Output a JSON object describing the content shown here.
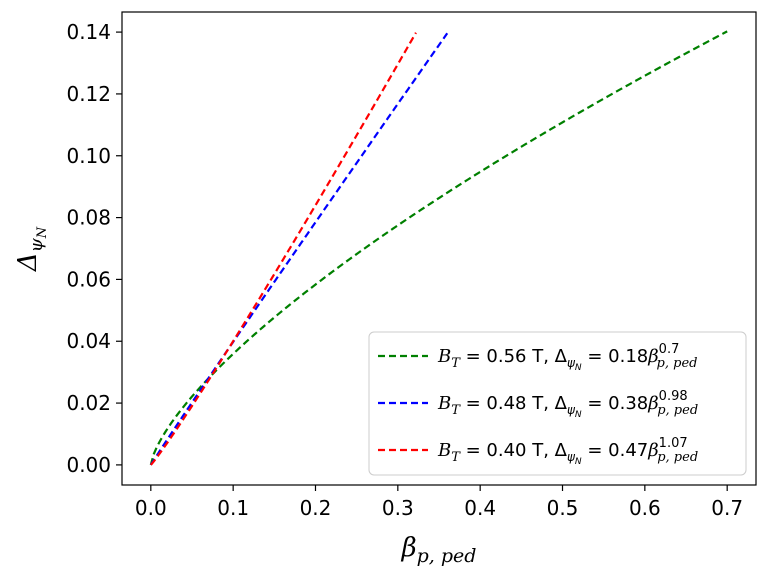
{
  "chart_data": {
    "type": "line",
    "title": "",
    "xlabel": "β_{p, ped}",
    "ylabel": "Δ_{ψ_N}",
    "xlim": [
      -0.035,
      0.735
    ],
    "ylim": [
      -0.0065,
      0.1465
    ],
    "xticks": [
      0.0,
      0.1,
      0.2,
      0.3,
      0.4,
      0.5,
      0.6,
      0.7
    ],
    "xtick_labels": [
      "0.0",
      "0.1",
      "0.2",
      "0.3",
      "0.4",
      "0.5",
      "0.6",
      "0.7"
    ],
    "yticks": [
      0.0,
      0.02,
      0.04,
      0.06,
      0.08,
      0.1,
      0.12,
      0.14
    ],
    "ytick_labels": [
      "0.00",
      "0.02",
      "0.04",
      "0.06",
      "0.08",
      "0.10",
      "0.12",
      "0.14"
    ],
    "grid": false,
    "legend_position": "lower-right",
    "series": [
      {
        "name": "B_T = 0.56 T, Δψ_N = 0.18β_{p,ped}^{0.7}",
        "legend_prefix": "B",
        "legend_sub": "T",
        "legend_mid": " = 0.56 T, ",
        "legend_delta": "Δ",
        "legend_coef": " = 0.18",
        "legend_beta": "β",
        "legend_exp": "0.7",
        "legend_sub2": "p, ped",
        "color": "#008000",
        "coefficient": 0.18,
        "exponent": 0.7,
        "x_max": 0.7
      },
      {
        "name": "B_T = 0.48 T, Δψ_N = 0.38β_{p,ped}^{0.98}",
        "legend_prefix": "B",
        "legend_sub": "T",
        "legend_mid": " = 0.48 T, ",
        "legend_delta": "Δ",
        "legend_coef": " = 0.38",
        "legend_beta": "β",
        "legend_exp": "0.98",
        "legend_sub2": "p, ped",
        "color": "#0000ff",
        "coefficient": 0.38,
        "exponent": 0.98,
        "x_max": 0.36
      },
      {
        "name": "B_T = 0.40 T, Δψ_N = 0.47β_{p,ped}^{1.07}",
        "legend_prefix": "B",
        "legend_sub": "T",
        "legend_mid": " = 0.40 T, ",
        "legend_delta": "Δ",
        "legend_coef": " = 0.47",
        "legend_beta": "β",
        "legend_exp": "1.07",
        "legend_sub2": "p, ped",
        "color": "#ff0000",
        "coefficient": 0.47,
        "exponent": 1.07,
        "x_max": 0.322
      }
    ]
  }
}
